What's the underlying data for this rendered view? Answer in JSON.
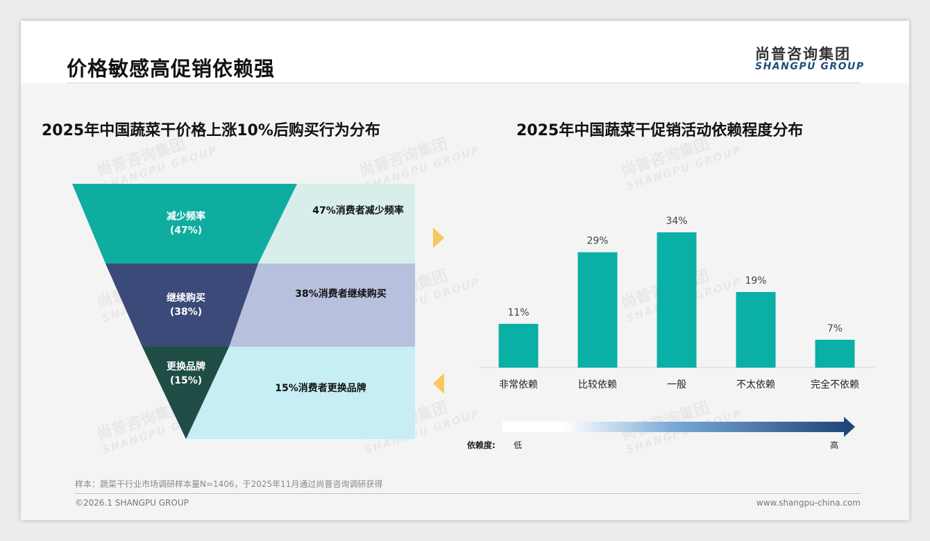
{
  "header": {
    "title": "价格敏感高促销依赖强",
    "logo_cn": "尚普咨询集团",
    "logo_en": "SHANGPU GROUP"
  },
  "left": {
    "subtitle": "2025年中国蔬菜干价格上涨10%后购买行为分布",
    "segments": [
      {
        "label": "减少频率",
        "pct": "(47%)",
        "value": 47,
        "desc": "47%消费者减少频率",
        "color": "#0fada0",
        "band": "#d7eeea"
      },
      {
        "label": "继续购买",
        "pct": "(38%)",
        "value": 38,
        "desc": "38%消费者继续购买",
        "color": "#3b4a78",
        "band": "#b7c0dc"
      },
      {
        "label": "更换品牌",
        "pct": "(15%)",
        "value": 15,
        "desc": "15%消费者更换品牌",
        "color": "#1f4d45",
        "band": "#c7eef5"
      }
    ]
  },
  "chart_data": {
    "type": "bar",
    "title": "2025年中国蔬菜干促销活动依赖程度分布",
    "categories": [
      "非常依赖",
      "比较依赖",
      "一般",
      "不太依赖",
      "完全不依赖"
    ],
    "values": [
      11,
      29,
      34,
      19,
      7
    ],
    "labels": [
      "11%",
      "29%",
      "34%",
      "19%",
      "7%"
    ],
    "ylim": [
      0,
      40
    ],
    "color": "#0aafa6"
  },
  "scale": {
    "label": "依赖度:",
    "low": "低",
    "high": "高"
  },
  "footer": {
    "note": "样本：蔬菜干行业市场调研样本量N=1406，于2025年11月通过尚普咨询调研获得",
    "copyright": "©2026.1 SHANGPU GROUP",
    "website": "www.shangpu-china.com"
  }
}
